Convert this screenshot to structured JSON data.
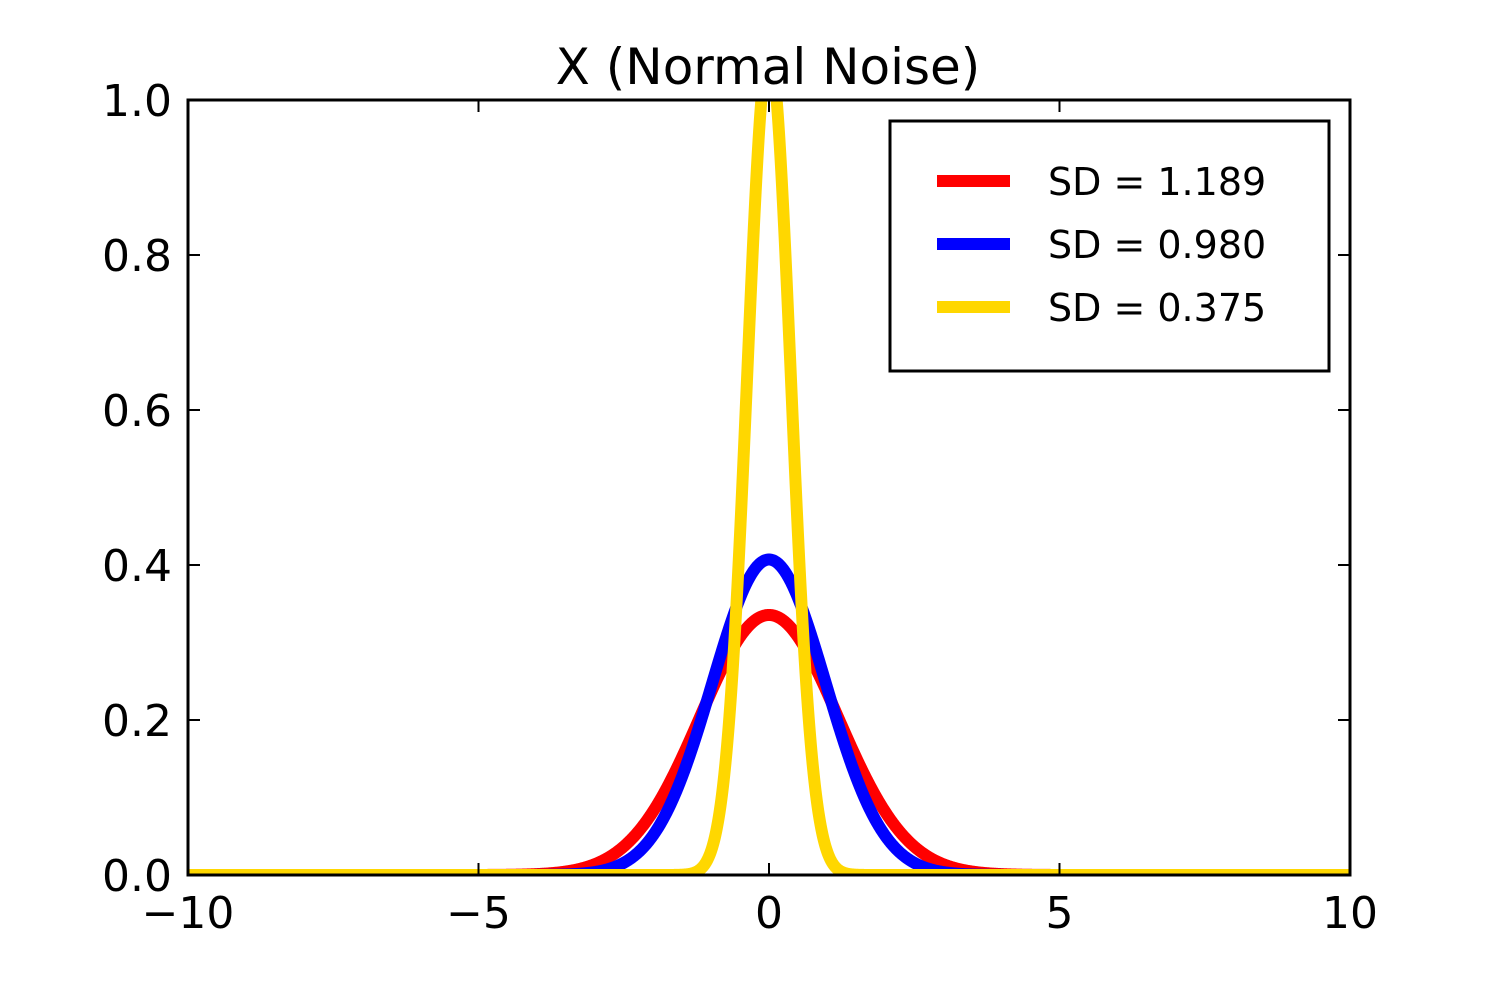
{
  "chart_data": {
    "type": "line",
    "title": "X (Normal Noise)",
    "xlabel": "",
    "ylabel": "",
    "xlim": [
      -10,
      10
    ],
    "ylim": [
      0.0,
      1.0
    ],
    "grid": false,
    "legend_position": "top-right",
    "xticks": [
      {
        "value": -10,
        "label": "−10"
      },
      {
        "value": -5,
        "label": "−5"
      },
      {
        "value": 0,
        "label": "0"
      },
      {
        "value": 5,
        "label": "5"
      },
      {
        "value": 10,
        "label": "10"
      }
    ],
    "yticks": [
      {
        "value": 0.0,
        "label": "0.0"
      },
      {
        "value": 0.2,
        "label": "0.2"
      },
      {
        "value": 0.4,
        "label": "0.4"
      },
      {
        "value": 0.6,
        "label": "0.6"
      },
      {
        "value": 0.8,
        "label": "0.8"
      },
      {
        "value": 1.0,
        "label": "1.0"
      }
    ],
    "series": [
      {
        "name": "SD = 1.189",
        "color": "#ff0000",
        "distribution": "normal",
        "mean": 0,
        "sd": 1.189
      },
      {
        "name": "SD = 0.980",
        "color": "#0000ff",
        "distribution": "normal",
        "mean": 0,
        "sd": 0.98
      },
      {
        "name": "SD = 0.375",
        "color": "#ffd700",
        "distribution": "normal",
        "mean": 0,
        "sd": 0.375
      }
    ]
  }
}
